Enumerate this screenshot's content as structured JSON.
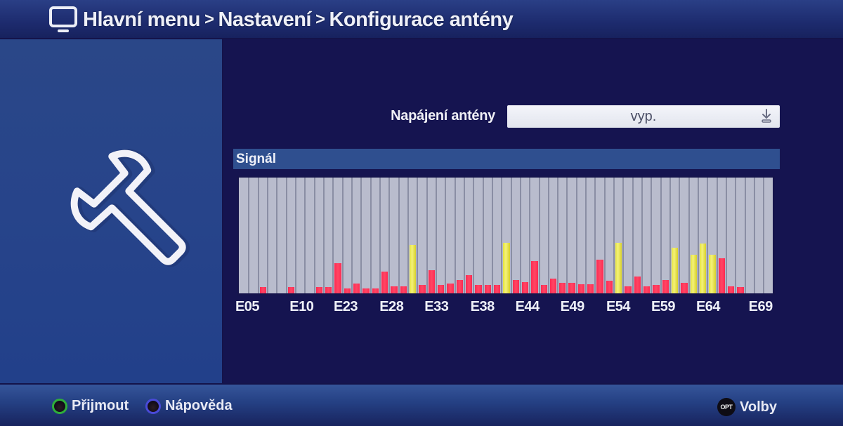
{
  "header": {
    "icon": "tv-icon",
    "breadcrumb": [
      "Hlavní menu",
      "Nastavení",
      "Konfigurace antény"
    ],
    "separator": ">"
  },
  "left_panel": {
    "icon": "wrench-icon"
  },
  "settings": {
    "power": {
      "label": "Napájení antény",
      "value": "vyp.",
      "icon": "download-arrow-icon"
    }
  },
  "signal": {
    "title": "Signál",
    "colors": {
      "red": "#ff3358",
      "yellow": "#ecea5a",
      "grid": "#b9bccd"
    }
  },
  "chart_data": {
    "type": "bar",
    "title": "Signál",
    "xlabel": "",
    "ylabel": "",
    "ylim": [
      0,
      165
    ],
    "grid": true,
    "column_count": 57,
    "x_tick_labels": [
      {
        "label": "E05",
        "col": 0.4
      },
      {
        "label": "E10",
        "col": 6.2
      },
      {
        "label": "E23",
        "col": 10.9
      },
      {
        "label": "E28",
        "col": 15.8
      },
      {
        "label": "E33",
        "col": 20.6
      },
      {
        "label": "E38",
        "col": 25.5
      },
      {
        "label": "E44",
        "col": 30.3
      },
      {
        "label": "E49",
        "col": 35.1
      },
      {
        "label": "E54",
        "col": 40.0
      },
      {
        "label": "E59",
        "col": 44.8
      },
      {
        "label": "E64",
        "col": 49.6
      },
      {
        "label": "E69",
        "col": 55.2
      }
    ],
    "bars": [
      {
        "col": 2,
        "value": 9,
        "color": "red"
      },
      {
        "col": 5,
        "value": 9,
        "color": "red"
      },
      {
        "col": 8,
        "value": 9,
        "color": "red"
      },
      {
        "col": 9,
        "value": 9,
        "color": "red"
      },
      {
        "col": 10,
        "value": 43,
        "color": "red"
      },
      {
        "col": 11,
        "value": 7,
        "color": "red"
      },
      {
        "col": 12,
        "value": 14,
        "color": "red"
      },
      {
        "col": 13,
        "value": 7,
        "color": "red"
      },
      {
        "col": 14,
        "value": 7,
        "color": "red"
      },
      {
        "col": 15,
        "value": 31,
        "color": "red"
      },
      {
        "col": 16,
        "value": 10,
        "color": "red"
      },
      {
        "col": 17,
        "value": 10,
        "color": "red"
      },
      {
        "col": 18,
        "value": 69,
        "color": "yellow"
      },
      {
        "col": 19,
        "value": 12,
        "color": "red"
      },
      {
        "col": 20,
        "value": 33,
        "color": "red"
      },
      {
        "col": 21,
        "value": 12,
        "color": "red"
      },
      {
        "col": 22,
        "value": 14,
        "color": "red"
      },
      {
        "col": 23,
        "value": 19,
        "color": "red"
      },
      {
        "col": 24,
        "value": 26,
        "color": "red"
      },
      {
        "col": 25,
        "value": 12,
        "color": "red"
      },
      {
        "col": 26,
        "value": 12,
        "color": "red"
      },
      {
        "col": 27,
        "value": 12,
        "color": "red"
      },
      {
        "col": 28,
        "value": 72,
        "color": "yellow"
      },
      {
        "col": 29,
        "value": 19,
        "color": "red"
      },
      {
        "col": 30,
        "value": 16,
        "color": "red"
      },
      {
        "col": 31,
        "value": 46,
        "color": "red"
      },
      {
        "col": 32,
        "value": 12,
        "color": "red"
      },
      {
        "col": 33,
        "value": 21,
        "color": "red"
      },
      {
        "col": 34,
        "value": 15,
        "color": "red"
      },
      {
        "col": 35,
        "value": 15,
        "color": "red"
      },
      {
        "col": 36,
        "value": 13,
        "color": "red"
      },
      {
        "col": 37,
        "value": 13,
        "color": "red"
      },
      {
        "col": 38,
        "value": 48,
        "color": "red"
      },
      {
        "col": 39,
        "value": 18,
        "color": "red"
      },
      {
        "col": 40,
        "value": 72,
        "color": "yellow"
      },
      {
        "col": 41,
        "value": 10,
        "color": "red"
      },
      {
        "col": 42,
        "value": 24,
        "color": "red"
      },
      {
        "col": 43,
        "value": 10,
        "color": "red"
      },
      {
        "col": 44,
        "value": 12,
        "color": "red"
      },
      {
        "col": 45,
        "value": 19,
        "color": "red"
      },
      {
        "col": 46,
        "value": 65,
        "color": "yellow"
      },
      {
        "col": 47,
        "value": 15,
        "color": "red"
      },
      {
        "col": 48,
        "value": 55,
        "color": "yellow"
      },
      {
        "col": 49,
        "value": 71,
        "color": "yellow"
      },
      {
        "col": 50,
        "value": 55,
        "color": "yellow"
      },
      {
        "col": 51,
        "value": 50,
        "color": "red"
      },
      {
        "col": 52,
        "value": 10,
        "color": "red"
      },
      {
        "col": 53,
        "value": 9,
        "color": "red"
      }
    ]
  },
  "footer": {
    "left": [
      {
        "key": "green-button",
        "label": "Přijmout"
      },
      {
        "key": "blue-button",
        "label": "Nápověda"
      }
    ],
    "right": [
      {
        "key": "opt-button",
        "badge": "OPT",
        "label": "Volby"
      }
    ]
  }
}
